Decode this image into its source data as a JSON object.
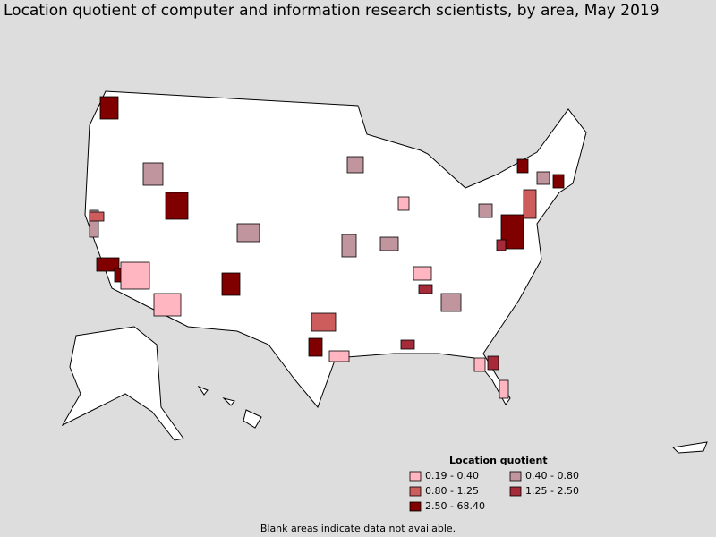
{
  "title": "Location quotient of computer and information research scientists, by area, May 2019",
  "legend": {
    "title": "Location quotient",
    "items": [
      {
        "label": "0.19 - 0.40",
        "color": "#ffb6c1"
      },
      {
        "label": "0.40 - 0.80",
        "color": "#c0959d"
      },
      {
        "label": "0.80 - 1.25",
        "color": "#cd5c5c"
      },
      {
        "label": "1.25 - 2.50",
        "color": "#a52a3a"
      },
      {
        "label": "2.50 - 68.40",
        "color": "#800000"
      }
    ]
  },
  "footnote": "Blank areas indicate data not available."
}
